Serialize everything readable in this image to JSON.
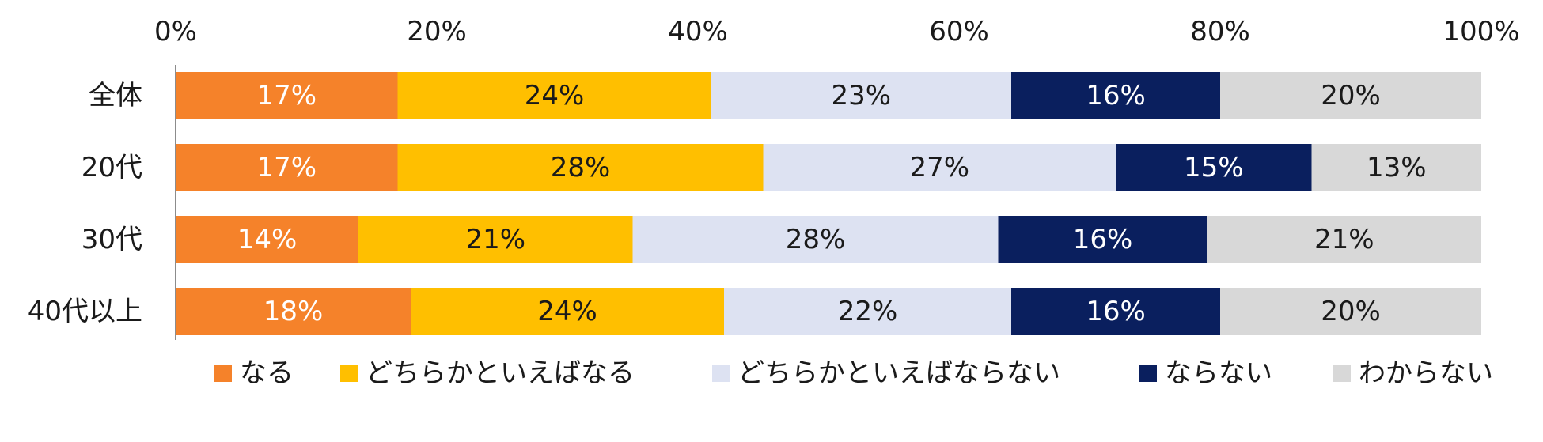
{
  "chart_data": {
    "type": "bar",
    "orientation": "horizontal",
    "stacked": true,
    "categories": [
      "全体",
      "20代",
      "30代",
      "40代以上"
    ],
    "x_ticks": [
      "0%",
      "20%",
      "40%",
      "60%",
      "80%",
      "100%"
    ],
    "xlim": [
      0,
      100
    ],
    "grid": false,
    "legend_position": "bottom",
    "series": [
      {
        "name": "なる",
        "color": "#F5822A",
        "label_color": "#FFFFFF",
        "values": [
          17,
          17,
          14,
          18
        ],
        "labels": [
          "17%",
          "17%",
          "14%",
          "18%"
        ]
      },
      {
        "name": "どちらかといえばなる",
        "color": "#FFBF00",
        "label_color": "#1A1A1A",
        "values": [
          24,
          28,
          21,
          24
        ],
        "labels": [
          "24%",
          "28%",
          "21%",
          "24%"
        ]
      },
      {
        "name": "どちらかといえばならない",
        "color": "#DDE2F2",
        "label_color": "#1A1A1A",
        "values": [
          23,
          27,
          28,
          22
        ],
        "labels": [
          "23%",
          "27%",
          "28%",
          "22%"
        ]
      },
      {
        "name": "ならない",
        "color": "#0A1F5E",
        "label_color": "#FFFFFF",
        "values": [
          16,
          15,
          16,
          16
        ],
        "labels": [
          "16%",
          "15%",
          "16%",
          "16%"
        ]
      },
      {
        "name": "わからない",
        "color": "#D8D8D8",
        "label_color": "#1A1A1A",
        "values": [
          20,
          13,
          21,
          20
        ],
        "labels": [
          "20%",
          "13%",
          "21%",
          "20%"
        ]
      }
    ]
  }
}
